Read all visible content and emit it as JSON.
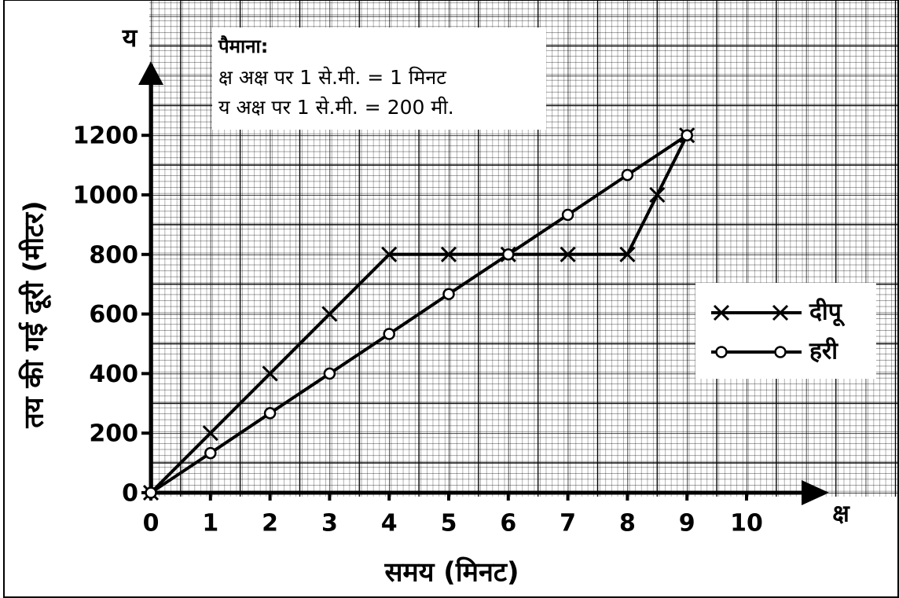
{
  "chart_data": {
    "type": "line",
    "y_axis_letter": "य",
    "x_axis_letter": "क्ष",
    "y_label": "तय की गई दूरी (मीटर)",
    "x_label": "समय (मिनट)",
    "scale_title": "पैमाना:",
    "scale_lines": [
      "क्ष अक्ष पर 1 से.मी. = 1 मिनट",
      "य अक्ष पर 1 से.मी. = 200 मी."
    ],
    "series": [
      {
        "name": "दीपू",
        "color": "#000000",
        "marker": "cross",
        "x": [
          0,
          1,
          2,
          3,
          4,
          5,
          6,
          7,
          8,
          8.5,
          9
        ],
        "values": [
          0,
          200,
          400,
          600,
          800,
          800,
          800,
          800,
          800,
          1000,
          1200
        ]
      },
      {
        "name": "हरी",
        "color": "#000000",
        "marker": "circle",
        "x": [
          0,
          1,
          2,
          3,
          4,
          5,
          6,
          7,
          8,
          9
        ],
        "values": [
          0,
          133,
          267,
          400,
          533,
          667,
          800,
          933,
          1067,
          1200
        ]
      }
    ],
    "xlim": [
      0,
      11.5
    ],
    "xticks": [
      0,
      1,
      2,
      3,
      4,
      5,
      6,
      7,
      8,
      9,
      10
    ],
    "ylim": [
      0,
      1400
    ],
    "yticks": [
      0,
      200,
      400,
      600,
      800,
      1000,
      1200
    ],
    "grid": true
  }
}
